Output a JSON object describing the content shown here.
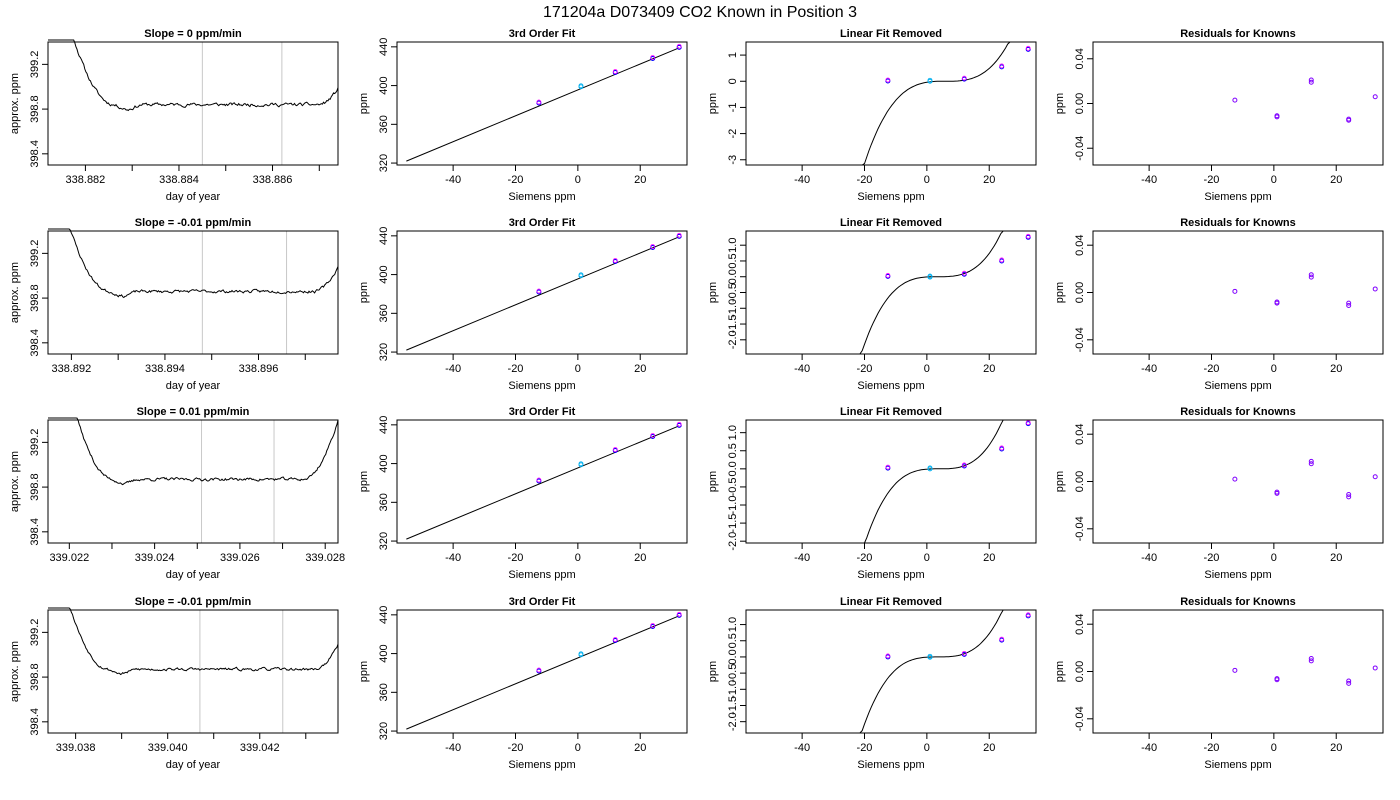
{
  "figure": {
    "supertitle": "171204a      D073409   CO2 Known in Position  3",
    "colors": {
      "trace": "#000000",
      "vline": "#c8c8c8",
      "point_blue": "#0000ff",
      "point_magenta": "#ff00ff",
      "point_cyan": "#00b0f0",
      "point_red": "#ff0000",
      "point_purple": "#8000ff"
    }
  },
  "chart_data": [
    {
      "type": "line",
      "panel": "trace",
      "row": 1,
      "title": "Slope =  0  ppm/min",
      "xlabel": "day of year",
      "ylabel": "approx. ppm",
      "xlim": [
        338.8812,
        338.8874
      ],
      "ylim": [
        398.3,
        399.4
      ],
      "xticks": [
        338.882,
        338.884,
        338.886
      ],
      "xtick_labels": [
        "338.882",
        "338.884",
        "338.886"
      ],
      "xminor": [
        338.883,
        338.885,
        338.887
      ],
      "yticks": [
        398.4,
        398.8,
        399.2
      ],
      "ytick_labels": [
        "398.4",
        "398.8",
        "399.2"
      ],
      "vlines": [
        338.8845,
        338.8862
      ],
      "plateau": 398.84,
      "noise": 0.025,
      "seed": 11,
      "edge_left": 338.8826,
      "edge_right": 338.887
    },
    {
      "type": "line",
      "panel": "fit",
      "row": 1,
      "title": "3rd Order Fit",
      "xlabel": "Siemens ppm",
      "ylabel": "ppm",
      "xlim": [
        -58,
        35
      ],
      "ylim": [
        318,
        445
      ],
      "xticks": [
        -40,
        -20,
        0,
        20
      ],
      "xtick_labels": [
        "-40",
        "-20",
        "0",
        "20"
      ],
      "yticks": [
        320,
        360,
        400,
        440
      ],
      "ytick_labels": [
        "320",
        "360",
        "400",
        "440"
      ],
      "line": {
        "x": [
          -55,
          32.5
        ],
        "y": [
          322,
          439
        ]
      },
      "points": {
        "x": [
          -12.5,
          1,
          12,
          24,
          32.5
        ],
        "y": [
          382,
          398.8,
          413.5,
          428,
          439.5
        ]
      }
    },
    {
      "type": "line",
      "panel": "linear_removed",
      "row": 1,
      "title": "Linear Fit Removed",
      "xlabel": "Siemens ppm",
      "ylabel": "ppm",
      "xlim": [
        -58,
        35
      ],
      "ylim": [
        -3.2,
        1.5
      ],
      "xticks": [
        -40,
        -20,
        0,
        20
      ],
      "xtick_labels": [
        "-40",
        "-20",
        "0",
        "20"
      ],
      "yticks": [
        -3,
        -2,
        -1,
        0,
        1
      ],
      "ytick_labels": [
        "-3",
        "-2",
        "-1",
        "0",
        "1"
      ],
      "curve_a": 0.000179,
      "curve_r": 6,
      "points": {
        "x": [
          -12.5,
          1,
          12,
          24,
          32.5
        ],
        "y": [
          0.01,
          0.0,
          0.08,
          0.55,
          1.22
        ]
      }
    },
    {
      "type": "scatter",
      "panel": "residuals",
      "row": 1,
      "title": "Residuals for Knowns",
      "xlabel": "Siemens ppm",
      "ylabel": "ppm",
      "xlim": [
        -58,
        35
      ],
      "ylim": [
        -0.055,
        0.055
      ],
      "xticks": [
        -40,
        -20,
        0,
        20
      ],
      "xtick_labels": [
        "-40",
        "-20",
        "0",
        "20"
      ],
      "yticks": [
        -0.04,
        0.0,
        0.04
      ],
      "ytick_labels": [
        "-0.04",
        "0.00",
        "0.04"
      ],
      "points": {
        "x": [
          -12.5,
          1,
          1,
          12,
          12,
          24,
          24,
          32.5
        ],
        "y": [
          0.003,
          -0.011,
          -0.012,
          0.021,
          0.019,
          -0.014,
          -0.015,
          0.006
        ]
      }
    },
    {
      "type": "line",
      "panel": "trace",
      "row": 2,
      "title": "Slope =  -0.01  ppm/min",
      "xlabel": "day of year",
      "ylabel": "approx. ppm",
      "xlim": [
        338.8915,
        338.8977
      ],
      "ylim": [
        398.3,
        399.4
      ],
      "xticks": [
        338.892,
        338.894,
        338.896
      ],
      "xtick_labels": [
        "338.892",
        "338.894",
        "338.896"
      ],
      "xminor": [
        338.893,
        338.895,
        338.897
      ],
      "yticks": [
        398.4,
        398.8,
        399.2
      ],
      "ytick_labels": [
        "398.4",
        "398.8",
        "399.2"
      ],
      "vlines": [
        338.8948,
        338.8966
      ],
      "plateau": 398.86,
      "noise": 0.022,
      "seed": 23,
      "edge_left": 338.8928,
      "edge_right": 338.8972
    },
    {
      "type": "line",
      "panel": "fit",
      "row": 2,
      "title": "3rd Order Fit",
      "xlabel": "Siemens ppm",
      "ylabel": "ppm",
      "xlim": [
        -58,
        35
      ],
      "ylim": [
        318,
        445
      ],
      "xticks": [
        -40,
        -20,
        0,
        20
      ],
      "xtick_labels": [
        "-40",
        "-20",
        "0",
        "20"
      ],
      "yticks": [
        320,
        360,
        400,
        440
      ],
      "ytick_labels": [
        "320",
        "360",
        "400",
        "440"
      ],
      "line": {
        "x": [
          -55,
          32.5
        ],
        "y": [
          322,
          439
        ]
      },
      "points": {
        "x": [
          -12.5,
          1,
          12,
          24,
          32.5
        ],
        "y": [
          382,
          398.8,
          413.5,
          428,
          439.5
        ]
      }
    },
    {
      "type": "line",
      "panel": "linear_removed",
      "row": 2,
      "title": "Linear Fit Removed",
      "xlabel": "Siemens ppm",
      "ylabel": "ppm",
      "xlim": [
        -58,
        35
      ],
      "ylim": [
        -2.45,
        1.45
      ],
      "xticks": [
        -40,
        -20,
        0,
        20
      ],
      "xtick_labels": [
        "-40",
        "-20",
        "0",
        "20"
      ],
      "yticks": [
        -2.0,
        -1.5,
        -1.0,
        -0.5,
        0.0,
        0.5,
        1.0
      ],
      "ytick_labels": [
        "-2.0",
        "-1.5",
        "-1.0",
        "-0.5",
        "0.0",
        "0.5",
        "1.0"
      ],
      "curve_a": 0.000165,
      "curve_r": 3.5,
      "points": {
        "x": [
          -12.5,
          1,
          12,
          24,
          32.5
        ],
        "y": [
          0.01,
          -0.01,
          0.08,
          0.5,
          1.25
        ]
      }
    },
    {
      "type": "scatter",
      "panel": "residuals",
      "row": 2,
      "title": "Residuals for Knowns",
      "xlabel": "Siemens ppm",
      "ylabel": "ppm",
      "xlim": [
        -58,
        35
      ],
      "ylim": [
        -0.052,
        0.052
      ],
      "xticks": [
        -40,
        -20,
        0,
        20
      ],
      "xtick_labels": [
        "-40",
        "-20",
        "0",
        "20"
      ],
      "yticks": [
        -0.04,
        0.0,
        0.04
      ],
      "ytick_labels": [
        "-0.04",
        "0.00",
        "0.04"
      ],
      "points": {
        "x": [
          -12.5,
          1,
          1,
          12,
          12,
          24,
          24,
          32.5
        ],
        "y": [
          0.001,
          -0.008,
          -0.009,
          0.015,
          0.013,
          -0.009,
          -0.011,
          0.003
        ]
      }
    },
    {
      "type": "line",
      "panel": "trace",
      "row": 3,
      "title": "Slope =  0.01  ppm/min",
      "xlabel": "day of year",
      "ylabel": "approx. ppm",
      "xlim": [
        339.0215,
        339.0283
      ],
      "ylim": [
        398.3,
        399.4
      ],
      "xticks": [
        339.022,
        339.024,
        339.026,
        339.028
      ],
      "xtick_labels": [
        "339.022",
        "339.024",
        "339.026",
        "339.028"
      ],
      "xminor": [
        339.023,
        339.025,
        339.027
      ],
      "yticks": [
        398.4,
        398.8,
        399.2
      ],
      "ytick_labels": [
        "398.4",
        "398.8",
        "399.2"
      ],
      "vlines": [
        339.0251,
        339.0268
      ],
      "plateau": 398.87,
      "noise": 0.022,
      "seed": 37,
      "edge_left": 339.023,
      "edge_right": 339.0275
    },
    {
      "type": "line",
      "panel": "fit",
      "row": 3,
      "title": "3rd Order Fit",
      "xlabel": "Siemens ppm",
      "ylabel": "ppm",
      "xlim": [
        -58,
        35
      ],
      "ylim": [
        318,
        445
      ],
      "xticks": [
        -40,
        -20,
        0,
        20
      ],
      "xtick_labels": [
        "-40",
        "-20",
        "0",
        "20"
      ],
      "yticks": [
        320,
        360,
        400,
        440
      ],
      "ytick_labels": [
        "320",
        "360",
        "400",
        "440"
      ],
      "line": {
        "x": [
          -55,
          32.5
        ],
        "y": [
          322,
          439
        ]
      },
      "points": {
        "x": [
          -12.5,
          1,
          12,
          24,
          32.5
        ],
        "y": [
          382,
          398.8,
          413.5,
          428,
          439.5
        ]
      }
    },
    {
      "type": "line",
      "panel": "linear_removed",
      "row": 3,
      "title": "Linear Fit Removed",
      "xlabel": "Siemens ppm",
      "ylabel": "ppm",
      "xlim": [
        -58,
        35
      ],
      "ylim": [
        -2.05,
        1.35
      ],
      "xticks": [
        -40,
        -20,
        0,
        20
      ],
      "xtick_labels": [
        "-40",
        "-20",
        "0",
        "20"
      ],
      "yticks": [
        -2.0,
        -1.5,
        -1.0,
        -0.5,
        0.0,
        0.5,
        1.0
      ],
      "ytick_labels": [
        "-2.0",
        "-1.5",
        "-1.0",
        "-0.5",
        "0.0",
        "0.5",
        "1.0"
      ],
      "curve_a": 0.000155,
      "curve_r": 3.8,
      "points": {
        "x": [
          -12.5,
          1,
          12,
          24,
          32.5
        ],
        "y": [
          0.02,
          0.0,
          0.08,
          0.55,
          1.25
        ]
      }
    },
    {
      "type": "scatter",
      "panel": "residuals",
      "row": 3,
      "title": "Residuals for Knowns",
      "xlabel": "Siemens ppm",
      "ylabel": "ppm",
      "xlim": [
        -58,
        35
      ],
      "ylim": [
        -0.052,
        0.052
      ],
      "xticks": [
        -40,
        -20,
        0,
        20
      ],
      "xtick_labels": [
        "-40",
        "-20",
        "0",
        "20"
      ],
      "yticks": [
        -0.04,
        0.0,
        0.04
      ],
      "ytick_labels": [
        "-0.04",
        "0.00",
        "0.04"
      ],
      "points": {
        "x": [
          -12.5,
          1,
          1,
          12,
          12,
          24,
          24,
          32.5
        ],
        "y": [
          0.002,
          -0.009,
          -0.01,
          0.017,
          0.015,
          -0.011,
          -0.013,
          0.004
        ]
      }
    },
    {
      "type": "line",
      "panel": "trace",
      "row": 4,
      "title": "Slope =  -0.01  ppm/min",
      "xlabel": "day of year",
      "ylabel": "approx. ppm",
      "xlim": [
        339.0374,
        339.0437
      ],
      "ylim": [
        398.3,
        399.4
      ],
      "xticks": [
        339.038,
        339.04,
        339.042
      ],
      "xtick_labels": [
        "339.038",
        "339.040",
        "339.042"
      ],
      "xminor": [
        339.039,
        339.041,
        339.043
      ],
      "yticks": [
        398.4,
        398.8,
        399.2
      ],
      "ytick_labels": [
        "398.4",
        "398.8",
        "399.2"
      ],
      "vlines": [
        339.0407,
        339.0425
      ],
      "plateau": 398.87,
      "noise": 0.02,
      "seed": 53,
      "edge_left": 339.0387,
      "edge_right": 339.0432
    },
    {
      "type": "line",
      "panel": "fit",
      "row": 4,
      "title": "3rd Order Fit",
      "xlabel": "Siemens ppm",
      "ylabel": "ppm",
      "xlim": [
        -58,
        35
      ],
      "ylim": [
        318,
        445
      ],
      "xticks": [
        -40,
        -20,
        0,
        20
      ],
      "xtick_labels": [
        "-40",
        "-20",
        "0",
        "20"
      ],
      "yticks": [
        320,
        360,
        400,
        440
      ],
      "ytick_labels": [
        "320",
        "360",
        "400",
        "440"
      ],
      "line": {
        "x": [
          -55,
          32.5
        ],
        "y": [
          322,
          439
        ]
      },
      "points": {
        "x": [
          -12.5,
          1,
          12,
          24,
          32.5
        ],
        "y": [
          382,
          398.8,
          413.5,
          428,
          439.5
        ]
      }
    },
    {
      "type": "line",
      "panel": "linear_removed",
      "row": 4,
      "title": "Linear Fit Removed",
      "xlabel": "Siemens ppm",
      "ylabel": "ppm",
      "xlim": [
        -58,
        35
      ],
      "ylim": [
        -2.35,
        1.45
      ],
      "xticks": [
        -40,
        -20,
        0,
        20
      ],
      "xtick_labels": [
        "-40",
        "-20",
        "0",
        "20"
      ],
      "yticks": [
        -2.0,
        -1.5,
        -1.0,
        -0.5,
        0.0,
        0.5,
        1.0
      ],
      "ytick_labels": [
        "-2.0",
        "-1.5",
        "-1.0",
        "-0.5",
        "0.0",
        "0.5",
        "1.0"
      ],
      "curve_a": 0.00016,
      "curve_r": 3.5,
      "points": {
        "x": [
          -12.5,
          1,
          12,
          24,
          32.5
        ],
        "y": [
          0.0,
          -0.01,
          0.08,
          0.52,
          1.27
        ]
      }
    },
    {
      "type": "scatter",
      "panel": "residuals",
      "row": 4,
      "title": "Residuals for Knowns",
      "xlabel": "Siemens ppm",
      "ylabel": "ppm",
      "xlim": [
        -58,
        35
      ],
      "ylim": [
        -0.052,
        0.052
      ],
      "xticks": [
        -40,
        -20,
        0,
        20
      ],
      "xtick_labels": [
        "-40",
        "-20",
        "0",
        "20"
      ],
      "yticks": [
        -0.04,
        0.0,
        0.04
      ],
      "ytick_labels": [
        "-0.04",
        "0.00",
        "0.04"
      ],
      "points": {
        "x": [
          -12.5,
          1,
          1,
          12,
          12,
          24,
          24,
          32.5
        ],
        "y": [
          0.001,
          -0.006,
          -0.007,
          0.011,
          0.009,
          -0.008,
          -0.01,
          0.003
        ]
      }
    }
  ]
}
